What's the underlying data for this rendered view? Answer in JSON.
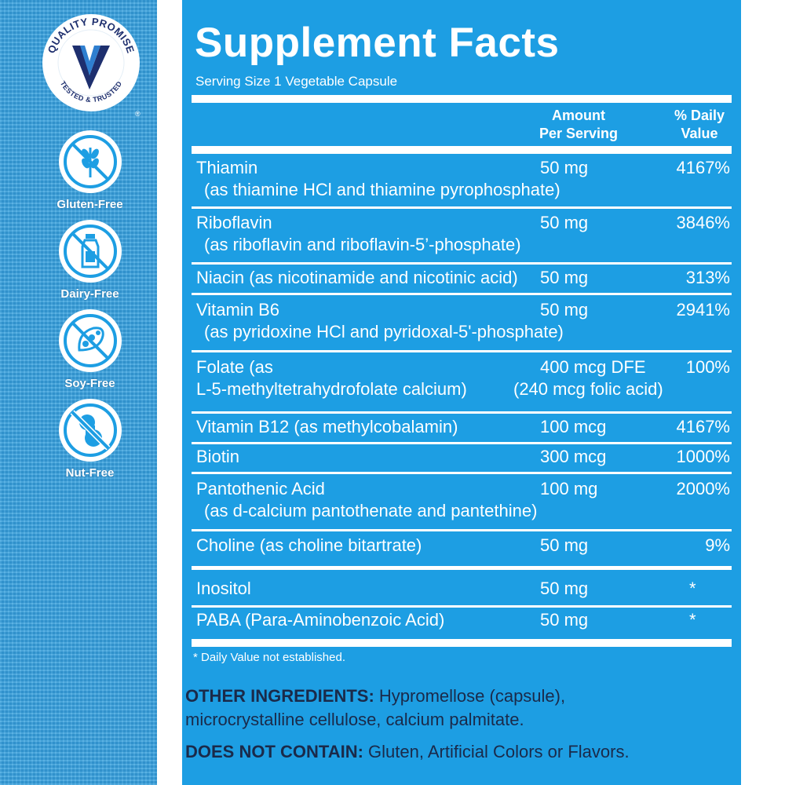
{
  "badges": {
    "quality_top": "QUALITY PROMISE",
    "quality_bottom": "TESTED & TRUSTED",
    "registered": "®",
    "items": [
      {
        "label": "Gluten-Free",
        "icon": "wheat-icon"
      },
      {
        "label": "Dairy-Free",
        "icon": "milk-bottle-icon"
      },
      {
        "label": "Soy-Free",
        "icon": "soybean-icon"
      },
      {
        "label": "Nut-Free",
        "icon": "peanut-icon"
      }
    ]
  },
  "facts": {
    "title": "Supplement Facts",
    "serving": "Serving Size 1 Vegetable Capsule",
    "col_amount": [
      "Amount",
      "Per Serving"
    ],
    "col_dv": [
      "% Daily",
      "Value"
    ],
    "rows": [
      {
        "name": "Thiamin",
        "sub": "(as thiamine HCl and thiamine pyrophosphate)",
        "amount": "50 mg",
        "dv": "4167%"
      },
      {
        "name": "Riboflavin",
        "sub": "(as riboflavin and riboflavin-5’-phosphate)",
        "amount": "50 mg",
        "dv": "3846%"
      },
      {
        "name": "Niacin (as nicotinamide and nicotinic acid)",
        "sub": "",
        "amount": "50 mg",
        "dv": "313%"
      },
      {
        "name": "Vitamin B6",
        "sub": "(as pyridoxine HCl and pyridoxal-5'-phosphate)",
        "amount": "50 mg",
        "dv": "2941%"
      },
      {
        "name": "Folate (as",
        "sub": "L-5-methyltetrahydrofolate calcium)",
        "amount": "400 mcg DFE",
        "dv": "100%",
        "amount_sub": "(240 mcg folic acid)"
      },
      {
        "name": "Vitamin B12 (as methylcobalamin)",
        "sub": "",
        "amount": "100 mcg",
        "dv": "4167%"
      },
      {
        "name": "Biotin",
        "sub": "",
        "amount": "300 mcg",
        "dv": "1000%"
      },
      {
        "name": "Pantothenic Acid",
        "sub": "(as d-calcium pantothenate and pantethine)",
        "amount": "100 mg",
        "dv": "2000%"
      },
      {
        "name": "Choline (as choline bitartrate)",
        "sub": "",
        "amount": "50 mg",
        "dv": "9%"
      },
      {
        "name": "Inositol",
        "sub": "",
        "amount": "50 mg",
        "dv": "*"
      },
      {
        "name": "PABA (Para-Aminobenzoic Acid)",
        "sub": "",
        "amount": "50 mg",
        "dv": "*"
      }
    ],
    "footnote": "* Daily Value not established."
  },
  "ingredients": {
    "other_label": "OTHER INGREDIENTS:",
    "other_text": " Hypromellose (capsule),",
    "other_text2": "microcrystalline cellulose, calcium palmitate.",
    "dnc_label": "DOES  NOT CONTAIN:",
    "dnc_text": " Gluten, Artificial Colors or Flavors."
  },
  "colors": {
    "panel": "#1d9ee3",
    "sidebar": "#3aa3de",
    "brand_navy": "#1e2f6e",
    "ink": "#1a2a4a"
  }
}
